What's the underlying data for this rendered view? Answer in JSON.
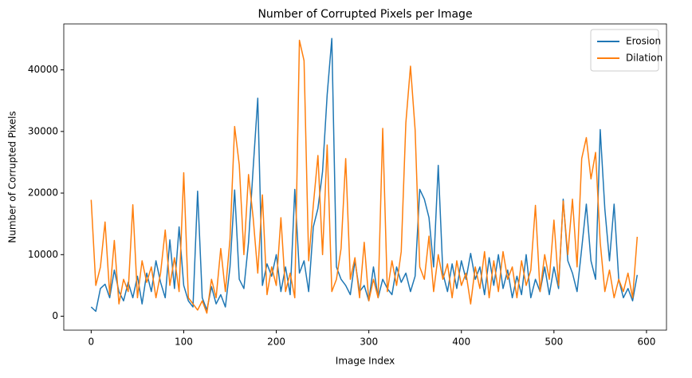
{
  "chart_data": {
    "type": "line",
    "title": "Number of Corrupted Pixels per Image",
    "x_label": "Image Index",
    "y_label": "Number of Corrupted Pixels",
    "x": [
      0,
      5,
      10,
      15,
      20,
      25,
      30,
      35,
      40,
      45,
      50,
      55,
      60,
      65,
      70,
      75,
      80,
      85,
      90,
      95,
      100,
      105,
      110,
      115,
      120,
      125,
      130,
      135,
      140,
      145,
      150,
      155,
      160,
      165,
      170,
      175,
      180,
      185,
      190,
      195,
      200,
      205,
      210,
      215,
      220,
      225,
      230,
      235,
      240,
      245,
      250,
      255,
      260,
      265,
      270,
      275,
      280,
      285,
      290,
      295,
      300,
      305,
      310,
      315,
      320,
      325,
      330,
      335,
      340,
      345,
      350,
      355,
      360,
      365,
      370,
      375,
      380,
      385,
      390,
      395,
      400,
      405,
      410,
      415,
      420,
      425,
      430,
      435,
      440,
      445,
      450,
      455,
      460,
      465,
      470,
      475,
      480,
      485,
      490,
      495,
      500,
      505,
      510,
      515,
      520,
      525,
      530,
      535,
      540,
      545,
      550,
      555,
      560,
      565,
      570,
      575,
      580,
      585,
      590
    ],
    "series": [
      {
        "name": "Erosion",
        "color": "#1f77b4",
        "values": [
          1500,
          800,
          4500,
          5200,
          3000,
          7500,
          4000,
          2500,
          5500,
          3000,
          6500,
          2000,
          7000,
          4000,
          9000,
          5500,
          3000,
          12400,
          4500,
          14500,
          5000,
          2500,
          1500,
          20300,
          3000,
          1000,
          4800,
          2000,
          3500,
          1500,
          8000,
          20500,
          6000,
          4500,
          12000,
          24000,
          35400,
          5000,
          8500,
          6500,
          10000,
          4000,
          8000,
          3500,
          20600,
          7000,
          9000,
          4000,
          14500,
          17500,
          23500,
          36000,
          45100,
          8000,
          6000,
          5000,
          3500,
          9000,
          4000,
          5000,
          2500,
          8000,
          3000,
          6000,
          4500,
          3500,
          8000,
          5500,
          7000,
          4000,
          6500,
          20600,
          19000,
          16000,
          8000,
          24500,
          7000,
          4000,
          8500,
          4500,
          9000,
          6000,
          10200,
          6000,
          8000,
          3500,
          9500,
          5000,
          10000,
          4500,
          7500,
          3000,
          6500,
          3500,
          10000,
          3000,
          6000,
          4000,
          8000,
          3500,
          8000,
          4500,
          19000,
          9000,
          7000,
          4000,
          11000,
          18200,
          9000,
          6000,
          30300,
          17400,
          9000,
          18200,
          6000,
          3000,
          4500,
          2500,
          6700
        ]
      },
      {
        "name": "Dilation",
        "color": "#ff7f0e",
        "values": [
          18900,
          5000,
          8000,
          15300,
          3500,
          12300,
          2000,
          6000,
          4000,
          18100,
          3000,
          9000,
          5500,
          8000,
          3000,
          7000,
          14000,
          5000,
          9500,
          4000,
          23300,
          3000,
          2000,
          1000,
          2500,
          500,
          6000,
          3000,
          11000,
          4000,
          12500,
          30800,
          24600,
          10000,
          23000,
          16000,
          7000,
          19700,
          3500,
          8000,
          5000,
          16000,
          4000,
          7000,
          3000,
          44800,
          41500,
          9000,
          18000,
          26100,
          10000,
          27800,
          4000,
          6000,
          11000,
          25600,
          6000,
          9500,
          3000,
          12000,
          2500,
          6000,
          3000,
          30500,
          4000,
          9000,
          5000,
          10500,
          31400,
          40600,
          30300,
          8000,
          6000,
          13000,
          4000,
          10000,
          6000,
          8500,
          3000,
          9000,
          5000,
          7000,
          2000,
          8000,
          4500,
          10500,
          3000,
          9000,
          4000,
          10500,
          6000,
          8000,
          3000,
          9000,
          5000,
          7500,
          18000,
          4000,
          10000,
          6000,
          15600,
          5000,
          18700,
          10000,
          19000,
          8000,
          25600,
          29000,
          22300,
          26600,
          12000,
          4000,
          7500,
          3000,
          6000,
          4000,
          7000,
          3000,
          12900
        ]
      }
    ],
    "xlim": [
      -29.6,
      621.6
    ],
    "xticks": [
      0,
      100,
      200,
      300,
      400,
      500,
      600
    ],
    "ylim": [
      -2260,
      47460
    ],
    "yticks": [
      0,
      10000,
      20000,
      30000,
      40000
    ],
    "legend": "upper right",
    "grid": false
  }
}
